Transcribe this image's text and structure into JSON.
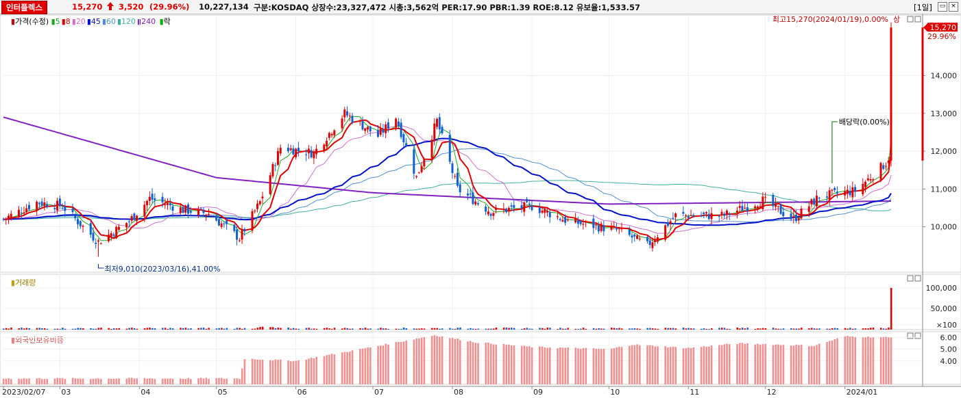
{
  "header": {
    "stock_name": "인터플렉스",
    "price": "15,270",
    "change": "3,520",
    "change_pct": "(29.96%)",
    "volume": "10,227,134",
    "info": "구분:KOSDAQ 상장수:23,327,472 시총:3,562억 PER:17.90 PBR:1.39 ROE:8.12 유보율:1,533.57",
    "period": "[1일]",
    "arrow_icon": "up-arrow-icon",
    "up_color": "#e00000"
  },
  "legend": {
    "price_label": "가격(수정)",
    "ma": [
      {
        "label": "5",
        "color": "#1fa81f"
      },
      {
        "label": "8",
        "color": "#e00000"
      },
      {
        "label": "20",
        "color": "#d070d0"
      },
      {
        "label": "45",
        "color": "#0010c8"
      },
      {
        "label": "60",
        "color": "#5090d0"
      },
      {
        "label": "120",
        "color": "#40b0a0"
      },
      {
        "label": "240",
        "color": "#8020c0"
      }
    ],
    "ex_label": "락",
    "volume_label": "거래량",
    "foreign_label": "외국인보유비중"
  },
  "annotations": {
    "high": "최고15,270(2024/01/19),0.00%",
    "high_mark": "상",
    "low": "최저9,010(2023/03/16),41.00%",
    "dividend": "배당락(0.00%)",
    "last_price_tag": "15,270",
    "last_pct_tag": "29.96%"
  },
  "chart_data": [
    {
      "type": "candlestick",
      "title": "가격(수정)",
      "x_ticks": [
        "2023/02/07",
        "03",
        "04",
        "05",
        "06",
        "07",
        "08",
        "09",
        "10",
        "11",
        "12",
        "2024/01"
      ],
      "y_ticks": [
        "14,000",
        "13,000",
        "12,000",
        "11,000",
        "10,000"
      ],
      "ylim": [
        8800,
        15600
      ],
      "close_path": [
        [
          "2023/02/07",
          10200
        ],
        [
          "2023/02/20",
          10650
        ],
        [
          "2023/03/02",
          10550
        ],
        [
          "2023/03/16",
          9600
        ],
        [
          "2023/03/28",
          10150
        ],
        [
          "2023/04/05",
          10750
        ],
        [
          "2023/04/18",
          10450
        ],
        [
          "2023/04/28",
          10350
        ],
        [
          "2023/05/10",
          9700
        ],
        [
          "2023/05/18",
          10650
        ],
        [
          "2023/05/26",
          12100
        ],
        [
          "2023/06/08",
          11950
        ],
        [
          "2023/06/20",
          13000
        ],
        [
          "2023/07/03",
          12400
        ],
        [
          "2023/07/10",
          12900
        ],
        [
          "2023/07/18",
          11300
        ],
        [
          "2023/07/26",
          12800
        ],
        [
          "2023/08/03",
          11000
        ],
        [
          "2023/08/16",
          10400
        ],
        [
          "2023/09/01",
          10550
        ],
        [
          "2023/09/15",
          10150
        ],
        [
          "2023/10/05",
          9900
        ],
        [
          "2023/10/16",
          9500
        ],
        [
          "2023/10/27",
          10300
        ],
        [
          "2023/11/15",
          10300
        ],
        [
          "2023/11/30",
          10700
        ],
        [
          "2023/12/12",
          10200
        ],
        [
          "2023/12/22",
          10800
        ],
        [
          "2024/01/05",
          10950
        ],
        [
          "2024/01/18",
          11750
        ],
        [
          "2024/01/19",
          15270
        ]
      ],
      "ma240_path": [
        [
          "2023/02/07",
          12900
        ],
        [
          "2023/05/01",
          11300
        ],
        [
          "2023/07/01",
          10900
        ],
        [
          "2023/10/01",
          10600
        ],
        [
          "2024/01/19",
          10680
        ]
      ],
      "high": 15270,
      "low": 9010
    },
    {
      "type": "bar",
      "title": "거래량",
      "y_ticks": [
        "100,000",
        "50,000",
        "×100"
      ],
      "last_value_label": "100,000"
    },
    {
      "type": "bar",
      "title": "외국인보유비중",
      "y_ticks": [
        "6.00",
        "5.00",
        "4.00"
      ],
      "ylim": [
        2.0,
        6.5
      ],
      "series_path": [
        [
          "2023/02/07",
          2.5
        ],
        [
          "2023/05/10",
          2.5
        ],
        [
          "2023/05/12",
          4.2
        ],
        [
          "2023/06/01",
          4.0
        ],
        [
          "2023/07/01",
          5.2
        ],
        [
          "2023/07/25",
          6.2
        ],
        [
          "2023/08/10",
          5.6
        ],
        [
          "2023/09/01",
          5.2
        ],
        [
          "2023/10/01",
          5.0
        ],
        [
          "2023/10/10",
          5.4
        ],
        [
          "2023/11/01",
          5.1
        ],
        [
          "2023/11/20",
          5.5
        ],
        [
          "2023/12/20",
          5.3
        ],
        [
          "2024/01/01",
          6.1
        ],
        [
          "2024/01/19",
          6.0
        ]
      ]
    }
  ]
}
